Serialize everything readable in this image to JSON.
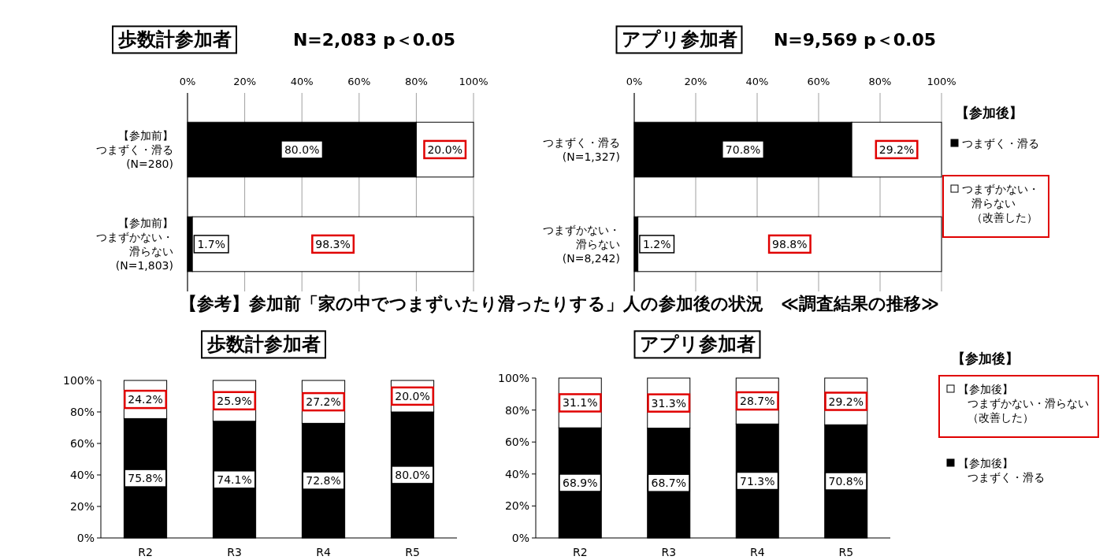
{
  "chart_data": [
    {
      "type": "bar",
      "stacked": true,
      "orientation": "horizontal",
      "title": "歩数計参加者",
      "subtitle": "N=2,083 p＜0.05",
      "categories": [
        "【参加前】つまずく・滑る(N=280)",
        "【参加前】つまずかない・滑らない(N=1,803)"
      ],
      "xlim": [
        0,
        100
      ],
      "xticks": [
        {
          "value": 0,
          "label": "0%"
        },
        {
          "value": 20,
          "label": "20%"
        },
        {
          "value": 40,
          "label": "40%"
        },
        {
          "value": 60,
          "label": "60%"
        },
        {
          "value": 80,
          "label": "80%"
        },
        {
          "value": 100,
          "label": "100%"
        }
      ],
      "grid": "x",
      "series": [
        {
          "color": "#000000",
          "values": [
            80.0,
            1.7
          ],
          "value_labels": [
            "80.0%",
            "1.7%"
          ]
        },
        {
          "color": "#ffffff",
          "values": [
            20.0,
            98.3
          ],
          "value_labels": [
            "20.0%",
            "98.3%"
          ]
        }
      ]
    },
    {
      "type": "bar",
      "stacked": true,
      "orientation": "horizontal",
      "title": "アプリ参加者",
      "subtitle": "N=9,569 p＜0.05",
      "categories": [
        "つまずく・滑る(N=1,327)",
        "つまずかない・滑らない(N=8,242)"
      ],
      "xlim": [
        0,
        100
      ],
      "xticks": [
        {
          "value": 0,
          "label": "0%"
        },
        {
          "value": 20,
          "label": "20%"
        },
        {
          "value": 40,
          "label": "40%"
        },
        {
          "value": 60,
          "label": "60%"
        },
        {
          "value": 80,
          "label": "80%"
        },
        {
          "value": 100,
          "label": "100%"
        }
      ],
      "grid": "x",
      "legend": "right",
      "legend_title": "【参加後】",
      "series": [
        {
          "name": "つまずく・滑る",
          "color": "#000000",
          "values": [
            70.8,
            1.2
          ],
          "value_labels": [
            "70.8%",
            "1.2%"
          ]
        },
        {
          "name": "つまずかない・滑らない（改善した）",
          "color": "#ffffff",
          "values": [
            29.2,
            98.8
          ],
          "value_labels": [
            "29.2%",
            "98.8%"
          ]
        }
      ]
    },
    {
      "type": "other",
      "title": "【参考】参加前「家の中でつまずいたり滑ったりする」人の参加後の状況　≪調査結果の推移≫"
    },
    {
      "type": "bar",
      "stacked": true,
      "title": "歩数計参加者",
      "categories": [
        "R2",
        "R3",
        "R4",
        "R5"
      ],
      "ylim": [
        0,
        100
      ],
      "yticks": [
        {
          "value": 0,
          "label": "0%"
        },
        {
          "value": 20,
          "label": "20%"
        },
        {
          "value": 40,
          "label": "40%"
        },
        {
          "value": 60,
          "label": "60%"
        },
        {
          "value": 80,
          "label": "80%"
        },
        {
          "value": 100,
          "label": "100%"
        }
      ],
      "series": [
        {
          "color": "#000000",
          "values": [
            75.8,
            74.1,
            72.8,
            80.0
          ],
          "value_labels": [
            "75.8%",
            "74.1%",
            "72.8%",
            "80.0%"
          ]
        },
        {
          "color": "#ffffff",
          "values": [
            24.2,
            25.9,
            27.2,
            20.0
          ],
          "value_labels": [
            "24.2%",
            "25.9%",
            "27.2%",
            "20.0%"
          ]
        }
      ]
    },
    {
      "type": "bar",
      "stacked": true,
      "title": "アプリ参加者",
      "categories": [
        "R2",
        "R3",
        "R4",
        "R5"
      ],
      "ylim": [
        0,
        100
      ],
      "yticks": [
        {
          "value": 0,
          "label": "0%"
        },
        {
          "value": 20,
          "label": "20%"
        },
        {
          "value": 40,
          "label": "40%"
        },
        {
          "value": 60,
          "label": "60%"
        },
        {
          "value": 80,
          "label": "80%"
        },
        {
          "value": 100,
          "label": "100%"
        }
      ],
      "legend": "right",
      "legend_title": "【参加後】",
      "series": [
        {
          "name": "【参加後】つまずく・滑る",
          "color": "#000000",
          "values": [
            68.9,
            68.7,
            71.3,
            70.8
          ],
          "value_labels": [
            "68.9%",
            "68.7%",
            "71.3%",
            "70.8%"
          ]
        },
        {
          "name": "【参加後】つまずかない・滑らない（改善した）",
          "color": "#ffffff",
          "values": [
            31.1,
            31.3,
            28.7,
            29.2
          ],
          "value_labels": [
            "31.1%",
            "31.3%",
            "28.7%",
            "29.2%"
          ]
        }
      ]
    }
  ]
}
